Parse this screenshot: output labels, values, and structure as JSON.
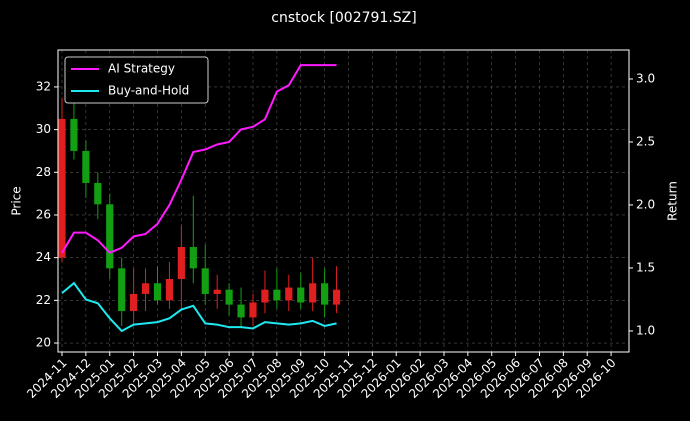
{
  "chart_data": {
    "type": "candlestick",
    "title": "cnstock [002791.SZ]",
    "y_label": "Price",
    "y2_label": "Return",
    "categories": [
      "2024-11",
      null,
      "2024-12",
      null,
      "2025-01",
      null,
      "2025-02",
      null,
      "2025-03",
      null,
      "2025-04",
      null,
      "2025-05",
      null,
      "2025-06",
      null,
      "2025-07",
      null,
      "2025-08",
      null,
      "2025-09",
      null,
      "2025-10",
      null,
      "2025-11",
      null,
      "2025-12",
      null,
      "2026-01",
      null,
      "2026-02",
      null,
      "2026-03",
      null,
      "2026-04",
      null,
      "2026-05",
      null,
      "2026-06",
      null,
      "2026-07",
      null,
      "2026-08",
      null,
      "2026-09",
      null,
      "2026-10",
      null
    ],
    "open": [
      24.0,
      30.5,
      29.0,
      27.5,
      26.5,
      23.5,
      21.5,
      22.3,
      22.8,
      22.0,
      23.0,
      24.5,
      23.5,
      22.3,
      22.5,
      21.8,
      21.2,
      21.9,
      22.5,
      22.0,
      22.6,
      21.9,
      22.8,
      21.8,
      null,
      null,
      null,
      null,
      null,
      null,
      null,
      null,
      null,
      null,
      null,
      null,
      null,
      null,
      null,
      null,
      null,
      null,
      null,
      null,
      null,
      null,
      null,
      null
    ],
    "high": [
      31.5,
      32.0,
      29.5,
      28.0,
      27.0,
      24.0,
      23.5,
      23.5,
      23.6,
      23.8,
      25.5,
      26.9,
      24.6,
      23.2,
      22.8,
      22.6,
      22.3,
      23.4,
      23.5,
      23.2,
      23.3,
      24.0,
      23.5,
      23.6,
      null,
      null,
      null,
      null,
      null,
      null,
      null,
      null,
      null,
      null,
      null,
      null,
      null,
      null,
      null,
      null,
      null,
      null,
      null,
      null,
      null,
      null,
      null,
      null
    ],
    "low": [
      23.8,
      28.6,
      26.8,
      25.8,
      23.0,
      20.8,
      20.9,
      21.5,
      21.8,
      21.6,
      21.5,
      22.8,
      21.8,
      21.6,
      21.3,
      20.7,
      20.8,
      21.4,
      21.6,
      21.5,
      21.6,
      21.5,
      21.2,
      21.4,
      null,
      null,
      null,
      null,
      null,
      null,
      null,
      null,
      null,
      null,
      null,
      null,
      null,
      null,
      null,
      null,
      null,
      null,
      null,
      null,
      null,
      null,
      null,
      null
    ],
    "close": [
      30.5,
      29.0,
      27.5,
      26.5,
      23.5,
      21.5,
      22.3,
      22.8,
      22.0,
      23.0,
      24.5,
      23.5,
      22.3,
      22.5,
      21.8,
      21.2,
      21.9,
      22.5,
      22.0,
      22.6,
      21.9,
      22.8,
      21.8,
      22.5,
      null,
      null,
      null,
      null,
      null,
      null,
      null,
      null,
      null,
      null,
      null,
      null,
      null,
      null,
      null,
      null,
      null,
      null,
      null,
      null,
      null,
      null,
      null,
      null
    ],
    "up_color": "#e02020",
    "down_color": "#12a012",
    "series": [
      {
        "name": "AI Strategy",
        "color": "#ff1aff",
        "axis": "y2",
        "values": [
          1.62,
          1.78,
          1.78,
          1.72,
          1.62,
          1.66,
          1.75,
          1.77,
          1.85,
          2.0,
          2.2,
          2.42,
          2.44,
          2.48,
          2.5,
          2.6,
          2.62,
          2.68,
          2.9,
          2.95,
          3.11,
          3.11,
          3.11,
          3.11,
          null,
          null,
          null,
          null,
          null,
          null,
          null,
          null,
          null,
          null,
          null,
          null,
          null,
          null,
          null,
          null,
          null,
          null,
          null,
          null,
          null,
          null,
          null,
          null
        ]
      },
      {
        "name": "Buy-and-Hold",
        "color": "#1ee8f0",
        "axis": "y2",
        "values": [
          1.3,
          1.38,
          1.25,
          1.22,
          1.1,
          1.0,
          1.05,
          1.06,
          1.07,
          1.1,
          1.17,
          1.2,
          1.06,
          1.05,
          1.03,
          1.03,
          1.02,
          1.07,
          1.06,
          1.05,
          1.06,
          1.08,
          1.04,
          1.06,
          null,
          null,
          null,
          null,
          null,
          null,
          null,
          null,
          null,
          null,
          null,
          null,
          null,
          null,
          null,
          null,
          null,
          null,
          null,
          null,
          null,
          null,
          null,
          null
        ]
      }
    ],
    "ylim": [
      19.58,
      33.73
    ],
    "yticks": [
      20,
      22,
      24,
      26,
      28,
      30,
      32
    ],
    "y2lim": [
      0.833,
      3.23
    ],
    "y2ticks": [
      {
        "value": 1,
        "label": "1.0"
      },
      1.5,
      {
        "value": 2,
        "label": "2.0"
      },
      2.5,
      {
        "value": 3,
        "label": "3.0"
      }
    ],
    "grid": true,
    "legend": "upper left"
  }
}
